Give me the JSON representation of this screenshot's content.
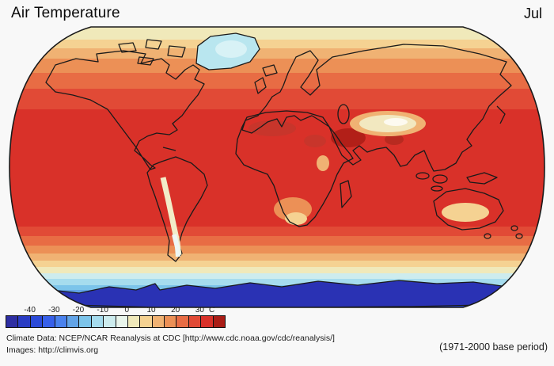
{
  "header": {
    "title": "Air Temperature",
    "month": "Jul"
  },
  "colorbar": {
    "unit": "C",
    "tick_labels": [
      "-40",
      "-30",
      "-20",
      "-10",
      "0",
      "10",
      "20",
      "30"
    ],
    "tick_values": [
      -40,
      -30,
      -20,
      -10,
      0,
      10,
      20,
      30
    ],
    "range_c": [
      -50,
      40
    ],
    "step_c": 5,
    "colors": [
      "#2e2ea2",
      "#2a3cc4",
      "#2b4ad8",
      "#3760ea",
      "#4a82ee",
      "#62a4e8",
      "#7cc4ea",
      "#a6dcee",
      "#cdecee",
      "#e9f5ec",
      "#f0e9ba",
      "#f5d292",
      "#f0b273",
      "#ec9056",
      "#e86c44",
      "#e14a36",
      "#d93129",
      "#aa1d16"
    ]
  },
  "map": {
    "description": "World map of July mean air temperature: deep red across the tropics and northern hemisphere, cream Arctic band, light blue over Greenland, pale Tibetan Plateau and Andes, dark red over the Middle East and Sahara, winter oranges over Australia and southern Africa, blue Southern Ocean and dark blue Antarctica",
    "coastline_color": "#1a1a1a",
    "main_red": "#d93129",
    "antarctica_blue": "#2a32b4",
    "greenland_blue": "#b9e6ef"
  },
  "footer": {
    "line1": "Climate Data:  NCEP/NCAR Reanalysis at CDC [http://www.cdc.noaa.gov/cdc/reanalysis/]",
    "line2": "Images:  http://climvis.org",
    "base_period": "(1971-2000 base period)"
  }
}
